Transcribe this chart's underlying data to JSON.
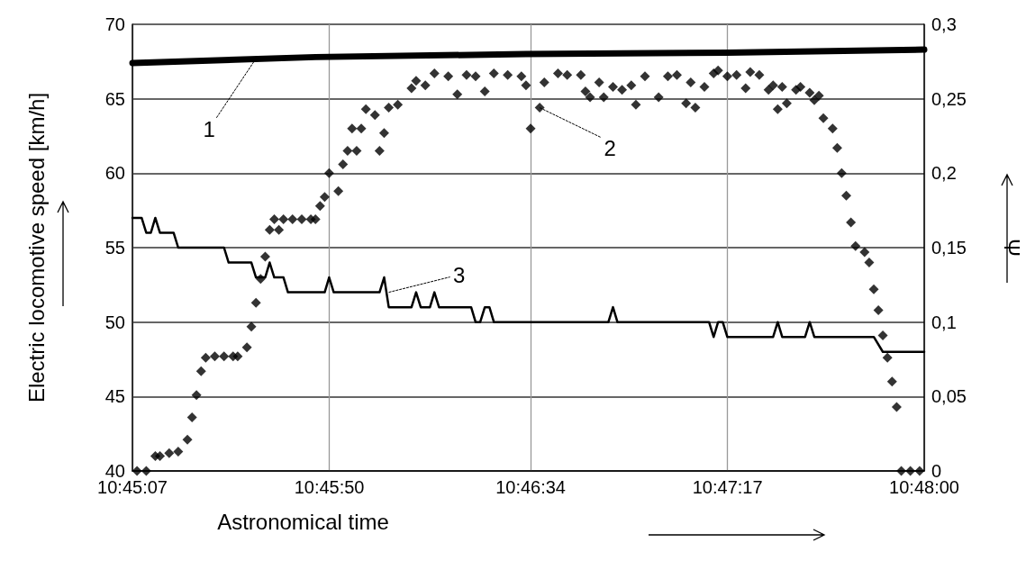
{
  "chart_data": {
    "type": "line",
    "xlabel": "Astronomical time",
    "ylabel": "Electric locomotive speed [km/h]",
    "y2label": "Ψ",
    "xlim": [
      10.75194,
      10.8
    ],
    "xticks": [
      {
        "value": 10.75194,
        "label": "10:45:07"
      },
      {
        "value": 10.76389,
        "label": "10:45:50"
      },
      {
        "value": 10.77611,
        "label": "10:46:34"
      },
      {
        "value": 10.78806,
        "label": "10:47:17"
      },
      {
        "value": 10.8,
        "label": "10:48:00"
      }
    ],
    "ylim": [
      40,
      70
    ],
    "yticks": [
      40,
      45,
      50,
      55,
      60,
      65,
      70
    ],
    "y2lim": [
      0,
      0.3
    ],
    "y2ticks": [
      0,
      {
        "value": 0.05,
        "label": "0,05"
      },
      {
        "value": 0.1,
        "label": "0,1"
      },
      {
        "value": 0.15,
        "label": "0,15"
      },
      {
        "value": 0.2,
        "label": "0,2"
      },
      {
        "value": 0.25,
        "label": "0,25"
      },
      {
        "value": 0.3,
        "label": "0,3"
      }
    ],
    "grid": true,
    "series": [
      {
        "color": "#000000",
        "x": [
          10.75194,
          10.76305,
          10.77583,
          10.78805,
          10.8
        ],
        "values": [
          67.4,
          67.8,
          68.0,
          68.1,
          68.3
        ]
      },
      {
        "type": "scatter",
        "marker": "diamond",
        "color": "#000000",
        "x": [
          10.75222,
          10.75278,
          10.75333,
          10.75361,
          10.75417,
          10.75472,
          10.75528,
          10.75556,
          10.75583,
          10.75611,
          10.75639,
          10.75694,
          10.7575,
          10.75805,
          10.75833,
          10.75889,
          10.75916,
          10.75944,
          10.75972,
          10.76,
          10.76027,
          10.76055,
          10.76083,
          10.76111,
          10.76166,
          10.76222,
          10.76277,
          10.76305,
          10.76333,
          10.76361,
          10.76388,
          10.76444,
          10.76472,
          10.765,
          10.76527,
          10.76555,
          10.76583,
          10.76611,
          10.76666,
          10.76694,
          10.76722,
          10.7675,
          10.76805,
          10.76888,
          10.76916,
          10.76972,
          10.77027,
          10.77111,
          10.77166,
          10.77222,
          10.77277,
          10.77333,
          10.77388,
          10.77472,
          10.77555,
          10.77583,
          10.77611,
          10.77666,
          10.77694,
          10.77777,
          10.77833,
          10.77916,
          10.77944,
          10.77972,
          10.78027,
          10.78055,
          10.78111,
          10.78166,
          10.78222,
          10.7825,
          10.78305,
          10.78388,
          10.78444,
          10.78499,
          10.78555,
          10.78583,
          10.78611,
          10.78666,
          10.78722,
          10.78749,
          10.78805,
          10.78861,
          10.78916,
          10.78944,
          10.78999,
          10.79055,
          10.79083,
          10.79111,
          10.79138,
          10.79166,
          10.79222,
          10.79249,
          10.79305,
          10.79333,
          10.79361,
          10.79388,
          10.79444,
          10.79472,
          10.79499,
          10.79527,
          10.79555,
          10.79583,
          10.79638,
          10.79666,
          10.79694,
          10.79722,
          10.79749,
          10.79777,
          10.79805,
          10.79833,
          10.79861,
          10.79916,
          10.79972
        ],
        "values": [
          40.0,
          40.0,
          41.0,
          41.0,
          41.2,
          41.3,
          42.1,
          43.6,
          45.1,
          46.7,
          47.6,
          47.7,
          47.7,
          47.7,
          47.7,
          48.3,
          49.7,
          51.3,
          52.9,
          54.4,
          56.2,
          56.9,
          56.2,
          56.9,
          56.9,
          56.9,
          56.9,
          56.9,
          57.8,
          58.4,
          60.0,
          58.8,
          60.6,
          61.5,
          63.0,
          61.5,
          63.0,
          64.3,
          63.9,
          61.5,
          62.7,
          64.4,
          64.6,
          65.7,
          66.2,
          65.9,
          66.7,
          66.5,
          65.3,
          66.6,
          66.5,
          65.5,
          66.7,
          66.6,
          66.5,
          65.9,
          63.0,
          64.4,
          66.1,
          66.7,
          66.6,
          66.6,
          65.5,
          65.1,
          66.1,
          65.1,
          65.8,
          65.6,
          65.9,
          64.6,
          66.5,
          65.1,
          66.5,
          66.6,
          64.7,
          66.1,
          64.4,
          65.8,
          66.7,
          66.9,
          66.5,
          66.6,
          65.7,
          66.8,
          66.6,
          65.6,
          65.9,
          64.3,
          65.8,
          64.7,
          65.6,
          65.8,
          65.4,
          64.9,
          65.2,
          63.7,
          63.0,
          61.7,
          60.0,
          58.5,
          56.7,
          55.1,
          54.7,
          54.0,
          52.2,
          50.8,
          49.1,
          47.6,
          46.0,
          44.3,
          40.0,
          40.0,
          40.0
        ]
      },
      {
        "axis": "y2",
        "color": "#000000",
        "x": [
          10.75194,
          10.7525,
          10.75278,
          10.75306,
          10.75333,
          10.75361,
          10.75444,
          10.75472,
          10.7575,
          10.75778,
          10.75916,
          10.75944,
          10.76,
          10.76027,
          10.76055,
          10.76111,
          10.76138,
          10.76361,
          10.76388,
          10.76416,
          10.76694,
          10.76722,
          10.7675,
          10.76888,
          10.76916,
          10.76944,
          10.77,
          10.77027,
          10.77055,
          10.7725,
          10.77277,
          10.77305,
          10.77333,
          10.77361,
          10.77388,
          10.78083,
          10.78111,
          10.78138,
          10.78694,
          10.78722,
          10.78749,
          10.78777,
          10.78805,
          10.79083,
          10.79111,
          10.79138,
          10.79277,
          10.79305,
          10.79333,
          10.79694,
          10.79749,
          10.8
        ],
        "values": [
          0.17,
          0.17,
          0.16,
          0.16,
          0.17,
          0.16,
          0.16,
          0.15,
          0.15,
          0.14,
          0.14,
          0.13,
          0.13,
          0.14,
          0.13,
          0.13,
          0.12,
          0.12,
          0.13,
          0.12,
          0.12,
          0.13,
          0.11,
          0.11,
          0.12,
          0.11,
          0.11,
          0.12,
          0.11,
          0.11,
          0.1,
          0.1,
          0.11,
          0.11,
          0.1,
          0.1,
          0.11,
          0.1,
          0.1,
          0.09,
          0.1,
          0.1,
          0.09,
          0.09,
          0.1,
          0.09,
          0.09,
          0.1,
          0.09,
          0.09,
          0.08,
          0.08
        ]
      }
    ],
    "annotations": [
      {
        "text": "1",
        "x": 10.75944,
        "y": 67.7
      },
      {
        "text": "2",
        "x": 10.77666,
        "y": 64.4
      },
      {
        "text": "3",
        "x": 10.7675,
        "y": 52
      }
    ]
  }
}
